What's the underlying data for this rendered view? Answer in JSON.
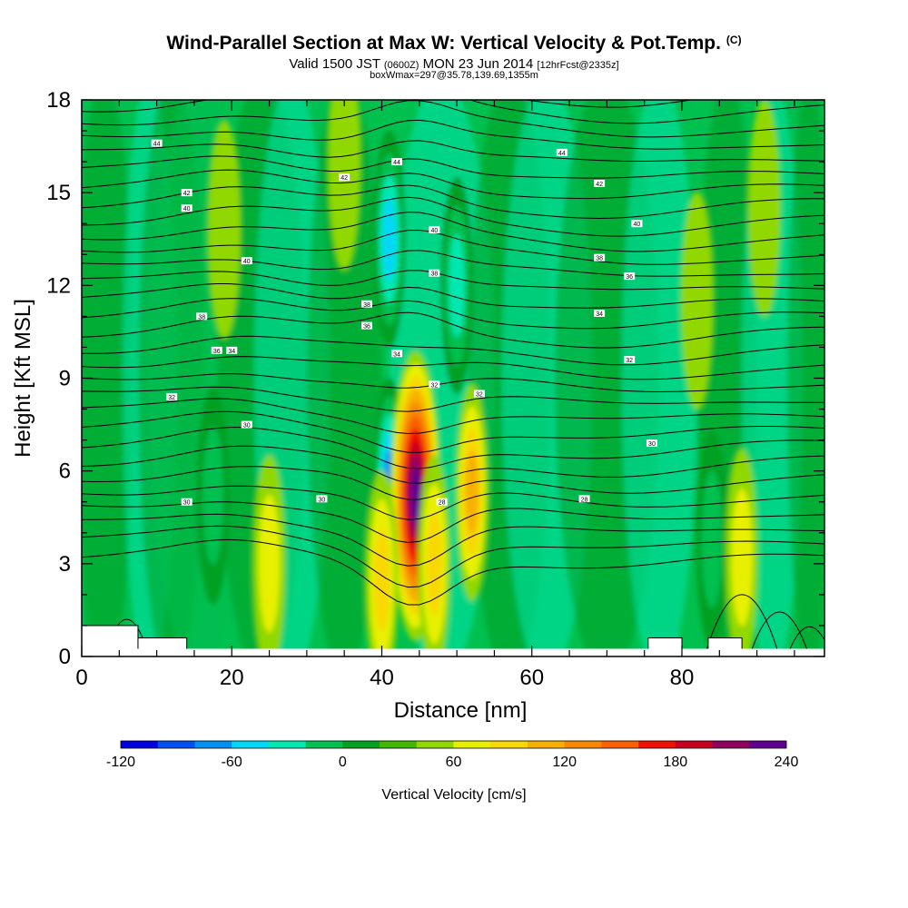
{
  "header": {
    "title": "Wind-Parallel Section at Max W: Vertical Velocity & Pot.Temp.",
    "copyright": "(C)",
    "valid_prefix": "Valid 1500 JST",
    "valid_utc": "(0600Z)",
    "valid_date": "MON 23 Jun 2014",
    "forecast_tag": "[12hrFcst@2335z]",
    "box_info": "boxWmax=297@35.78,139.69,1355m"
  },
  "colorbar": {
    "label": "Vertical Velocity [cm/s]",
    "tick_labels": [
      "-120",
      "-60",
      "0",
      "60",
      "120",
      "180",
      "240"
    ],
    "colors": [
      "#0000e0",
      "#0050f0",
      "#0090f0",
      "#00d8f8",
      "#00e8b0",
      "#00c050",
      "#00a020",
      "#40b800",
      "#90d800",
      "#e8f000",
      "#f8d800",
      "#f8b000",
      "#f88800",
      "#f86000",
      "#f01000",
      "#c80020",
      "#900060",
      "#600090"
    ]
  },
  "chart_data": {
    "type": "heatmap",
    "xlabel": "Distance [nm]",
    "ylabel": "Height [Kft MSL]",
    "xlim": [
      0,
      99
    ],
    "ylim": [
      0,
      18
    ],
    "x_ticks": [
      "0",
      "20",
      "40",
      "60",
      "80"
    ],
    "y_ticks": [
      "0",
      "3",
      "6",
      "9",
      "12",
      "15",
      "18"
    ],
    "field": "vertical velocity (cm/s) shaded, potential temperature (C) contoured",
    "updraft_cores": [
      {
        "x": 44.5,
        "y": 5.2,
        "w_cms": 220
      },
      {
        "x": 52,
        "y": 5.3,
        "w_cms": 90
      },
      {
        "x": 47,
        "y": 3.0,
        "w_cms": 80
      },
      {
        "x": 40,
        "y": 2.5,
        "w_cms": 70
      },
      {
        "x": 25,
        "y": 3.0,
        "w_cms": 50
      },
      {
        "x": 88,
        "y": 3.2,
        "w_cms": 50
      },
      {
        "x": 35,
        "y": 16.0,
        "w_cms": 40
      },
      {
        "x": 19,
        "y": 13.8,
        "w_cms": 40
      },
      {
        "x": 82,
        "y": 11.5,
        "w_cms": 40
      },
      {
        "x": 91,
        "y": 14.5,
        "w_cms": 40
      }
    ],
    "downdraft_cores": [
      {
        "x": 41,
        "y": 5.5,
        "w_cms": -90
      },
      {
        "x": 41,
        "y": 13.5,
        "w_cms": -70
      },
      {
        "x": 50,
        "y": 12.0,
        "w_cms": -50
      },
      {
        "x": 17.5,
        "y": 5.2,
        "w_cms": -40
      },
      {
        "x": 84,
        "y": 3.8,
        "w_cms": -30
      }
    ],
    "theta_contour_labels": [
      "44",
      "44",
      "44",
      "42",
      "42",
      "42",
      "40",
      "40",
      "40",
      "40",
      "38",
      "38",
      "38",
      "38",
      "36",
      "36",
      "36",
      "34",
      "34",
      "34",
      "32",
      "32",
      "32",
      "32",
      "30",
      "30",
      "30",
      "30",
      "28",
      "28"
    ],
    "terrain_blocks": [
      {
        "x0": 0,
        "x1": 7.5,
        "top": 1.0
      },
      {
        "x0": 7.5,
        "x1": 14,
        "top": 0.6
      },
      {
        "x0": 75.5,
        "x1": 80,
        "top": 0.6
      },
      {
        "x0": 83.5,
        "x1": 88,
        "top": 0.6
      }
    ]
  }
}
